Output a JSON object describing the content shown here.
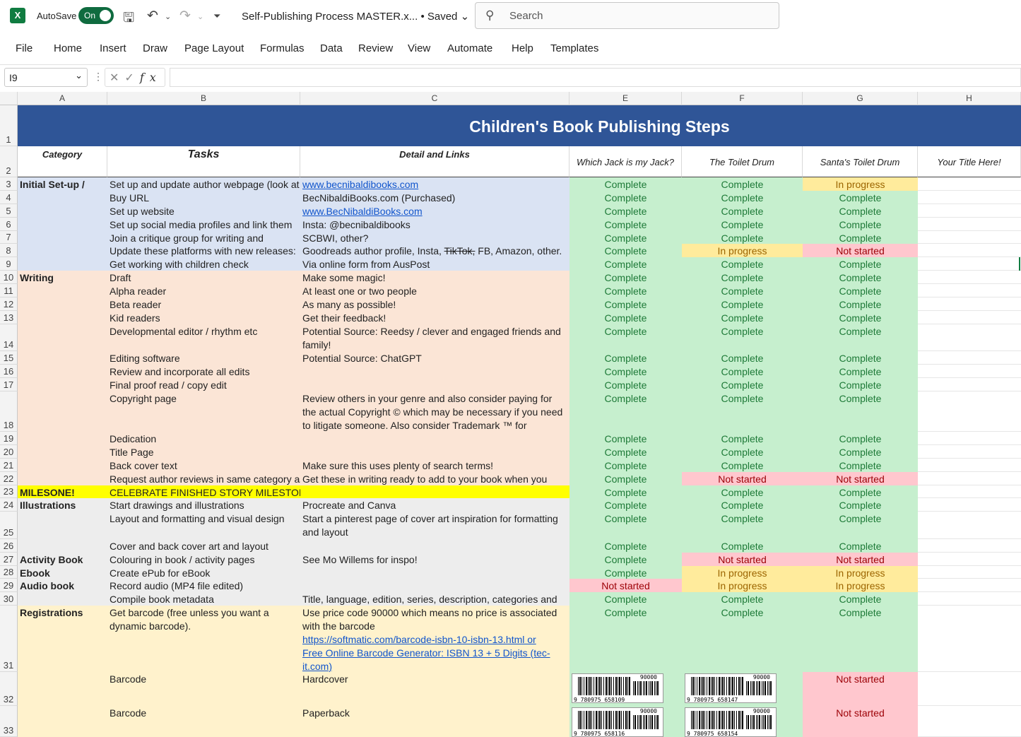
{
  "titlebar": {
    "app_icon": "X",
    "autosave_label": "AutoSave",
    "autosave_state": "On",
    "filename": "Self-Publishing Process MASTER.x...",
    "saved_status": "• Saved",
    "search_placeholder": "Search"
  },
  "menu": [
    "File",
    "Home",
    "Insert",
    "Draw",
    "Page Layout",
    "Formulas",
    "Data",
    "Review",
    "View",
    "Automate",
    "Help",
    "Templates"
  ],
  "formula_bar": {
    "name_box": "I9",
    "formula": ""
  },
  "columns": [
    "A",
    "B",
    "C",
    "E",
    "F",
    "G",
    "H"
  ],
  "rows": [
    "1",
    "2",
    "3",
    "4",
    "5",
    "6",
    "7",
    "8",
    "9",
    "10",
    "11",
    "12",
    "13",
    "14",
    "15",
    "16",
    "17",
    "18",
    "19",
    "20",
    "21",
    "22",
    "23",
    "24",
    "25",
    "26",
    "27",
    "28",
    "29",
    "30",
    "31",
    "32",
    "33"
  ],
  "sheet": {
    "title": "Children's Book Publishing Steps",
    "headers": {
      "category": "Category",
      "tasks": "Tasks",
      "detail": "Detail and Links",
      "book1": "Which Jack is my Jack?",
      "book2": "The Toilet Drum",
      "book3": "Santa's Toilet Drum",
      "book4": "Your Title Here!"
    },
    "rows": [
      {
        "cat": "Initial Set-up /",
        "task": "Set up and update author webpage (look at",
        "detail": "www.becnibaldibooks.com",
        "link": true,
        "s": [
          "Complete",
          "Complete",
          "In progress"
        ]
      },
      {
        "cat": "",
        "task": "Buy URL",
        "detail": "BecNibaldiBooks.com (Purchased)",
        "s": [
          "Complete",
          "Complete",
          "Complete"
        ]
      },
      {
        "cat": "",
        "task": "Set up website",
        "detail": "www.BecNibaldiBooks.com ",
        "link": true,
        "s": [
          "Complete",
          "Complete",
          "Complete"
        ]
      },
      {
        "cat": "",
        "task": "Set up social media profiles and link them",
        "detail": "Insta: @becnibaldibooks",
        "s": [
          "Complete",
          "Complete",
          "Complete"
        ]
      },
      {
        "cat": "",
        "task": "Join a critique group for writing and",
        "detail": "SCBWI, other?",
        "s": [
          "Complete",
          "Complete",
          "Complete"
        ]
      },
      {
        "cat": "",
        "task": "Update these platforms with new releases:",
        "detail_a": "Goodreads author profile, Insta, ",
        "detail_s": "TikTok,",
        "detail_b": " FB, Amazon, other.",
        "s": [
          "Complete",
          "In progress",
          "Not started"
        ]
      },
      {
        "cat": "",
        "task": "Get working with children check",
        "detail": "Via online form from AusPost",
        "s": [
          "Complete",
          "Complete",
          "Complete"
        ]
      },
      {
        "cat": "Writing",
        "task": "Draft",
        "detail": "Make some magic!",
        "s": [
          "Complete",
          "Complete",
          "Complete"
        ]
      },
      {
        "cat": "",
        "task": "Alpha reader",
        "detail": "At least one or two people",
        "s": [
          "Complete",
          "Complete",
          "Complete"
        ]
      },
      {
        "cat": "",
        "task": "Beta reader",
        "detail": "As many as possible!",
        "s": [
          "Complete",
          "Complete",
          "Complete"
        ]
      },
      {
        "cat": "",
        "task": "Kid readers",
        "detail": "Get their feedback!",
        "s": [
          "Complete",
          "Complete",
          "Complete"
        ]
      },
      {
        "cat": "",
        "task": "Developmental editor / rhythm etc",
        "detail": "Potential Source: Reedsy / clever and engaged friends and family!",
        "s": [
          "Complete",
          "Complete",
          "Complete"
        ]
      },
      {
        "cat": "",
        "task": "Editing software",
        "detail": "Potential Source: ChatGPT",
        "s": [
          "Complete",
          "Complete",
          "Complete"
        ]
      },
      {
        "cat": "",
        "task": "Review and incorporate all edits",
        "detail": "",
        "s": [
          "Complete",
          "Complete",
          "Complete"
        ]
      },
      {
        "cat": "",
        "task": "Final proof read / copy edit",
        "detail": "",
        "s": [
          "Complete",
          "Complete",
          "Complete"
        ]
      },
      {
        "cat": "",
        "task": "Copyright page",
        "detail": "Review others in your genre and also consider paying for the actual Copyright © which may be necessary if you need to litigate someone. Also consider Trademark ™ for characters.",
        "s": [
          "Complete",
          "Complete",
          "Complete"
        ]
      },
      {
        "cat": "",
        "task": "Dedication",
        "detail": "",
        "s": [
          "Complete",
          "Complete",
          "Complete"
        ]
      },
      {
        "cat": "",
        "task": "Title Page",
        "detail": "",
        "s": [
          "Complete",
          "Complete",
          "Complete"
        ]
      },
      {
        "cat": "",
        "task": "Back cover text",
        "detail": "Make sure this uses plenty of search terms!",
        "s": [
          "Complete",
          "Complete",
          "Complete"
        ]
      },
      {
        "cat": "",
        "task": "Request author reviews in same category as",
        "detail": "Get these in writing ready to add to your book when you",
        "s": [
          "Complete",
          "Not started",
          "Not started"
        ]
      },
      {
        "cat": "MILESONE!",
        "task": "CELEBRATE FINISHED STORY MILESTONE!",
        "detail": "",
        "s": [
          "Complete",
          "Complete",
          "Complete"
        ]
      },
      {
        "cat": "Illustrations",
        "task": "Start drawings and illustrations",
        "detail": "Procreate and Canva",
        "s": [
          "Complete",
          "Complete",
          "Complete"
        ]
      },
      {
        "cat": "",
        "task": "Layout and formatting and visual design",
        "detail": "Start a pinterest page of cover art inspiration for formatting and layout",
        "s": [
          "Complete",
          "Complete",
          "Complete"
        ]
      },
      {
        "cat": "",
        "task": "Cover and back cover art and layout",
        "detail": "",
        "s": [
          "Complete",
          "Complete",
          "Complete"
        ]
      },
      {
        "cat": "Activity Book",
        "task": "Colouring in book / activity pages",
        "detail": "See Mo Willems for inspo!",
        "s": [
          "Complete",
          "Not started",
          "Not started"
        ]
      },
      {
        "cat": "Ebook",
        "task": "Create ePub for eBook",
        "detail": "",
        "s": [
          "Complete",
          "In progress",
          "In progress"
        ]
      },
      {
        "cat": "Audio book",
        "task": "Record audio (MP4 file edited)",
        "detail": "",
        "s": [
          "Not started",
          "In progress",
          "In progress"
        ]
      },
      {
        "cat": "",
        "task": "Compile book metadata",
        "detail": "Title, language, edition, series, description, categories and key",
        "s": [
          "Complete",
          "Complete",
          "Complete"
        ]
      },
      {
        "cat": "Registrations",
        "task": "Get barcode (free unless you want a dynamic barcode).",
        "detail": "Use price code 90000 which means no price is associated with the barcode",
        "link1": "https://softmatic.com/barcode-isbn-10-isbn-13.html or ",
        "link2": "Free Online Barcode Generator: ISBN 13 + 5 Digits (tec-it.com)",
        "s": [
          "Complete",
          "Complete",
          "Complete"
        ]
      },
      {
        "cat": "",
        "task": "Barcode",
        "detail": "Hardcover",
        "s": [
          "",
          "",
          "Not started"
        ],
        "barcodes": [
          "9 780975 658109",
          "9 780975 658147"
        ],
        "price": "90000"
      },
      {
        "cat": "",
        "task": "Barcode",
        "detail": "Paperback",
        "s": [
          "",
          "",
          "Not started"
        ],
        "barcodes": [
          "9 780975 658116",
          "9 780975 658154"
        ],
        "price": "90000"
      }
    ]
  },
  "colors": {
    "complete_bg": "#c6efce",
    "complete_fg": "#1e7a38",
    "progress_bg": "#ffeb9c",
    "progress_fg": "#9c6500",
    "notstarted_bg": "#ffc7ce",
    "notstarted_fg": "#9c0006",
    "title_bg": "#2f5597",
    "setup_bg": "#dae3f3",
    "writing_bg": "#fbe5d6",
    "milestone_bg": "#ffff00",
    "illus_bg": "#ededed",
    "reg_bg": "#fff2cc"
  }
}
